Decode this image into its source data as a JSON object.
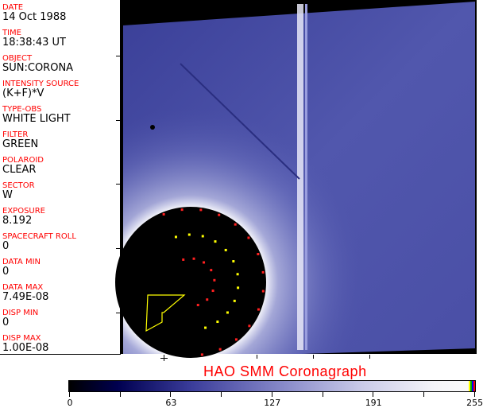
{
  "fields": [
    {
      "label": "DATE",
      "value": "14 Oct 1988"
    },
    {
      "label": "TIME",
      "value": "18:38:43 UT"
    },
    {
      "label": "OBJECT",
      "value": "SUN:CORONA"
    },
    {
      "label": "INTENSITY SOURCE",
      "value": "(K+F)*V"
    },
    {
      "label": "TYPE-OBS",
      "value": "WHITE LIGHT"
    },
    {
      "label": "FILTER",
      "value": "GREEN"
    },
    {
      "label": "POLAROID",
      "value": "CLEAR"
    },
    {
      "label": "SECTOR",
      "value": "W"
    },
    {
      "label": "EXPOSURE",
      "value": "8.192"
    },
    {
      "label": "SPACECRAFT ROLL",
      "value": "0"
    },
    {
      "label": "DATA MIN",
      "value": "0"
    },
    {
      "label": "DATA MAX",
      "value": "7.49E-08"
    },
    {
      "label": "DISP MIN",
      "value": "0"
    },
    {
      "label": "DISP MAX",
      "value": "1.00E-08"
    }
  ],
  "title": "HAO   SMM Coronagraph",
  "colorbar": {
    "ticks": [
      "0",
      "63",
      "127",
      "191",
      "255"
    ],
    "min_color": "#000000",
    "max_color": "#fafafa",
    "end_colors": [
      "#ffff00",
      "#00a000",
      "#0000ff",
      "#ff0000"
    ]
  },
  "colors": {
    "label": "#ff0000",
    "image_blue": "#4a4fa8"
  }
}
